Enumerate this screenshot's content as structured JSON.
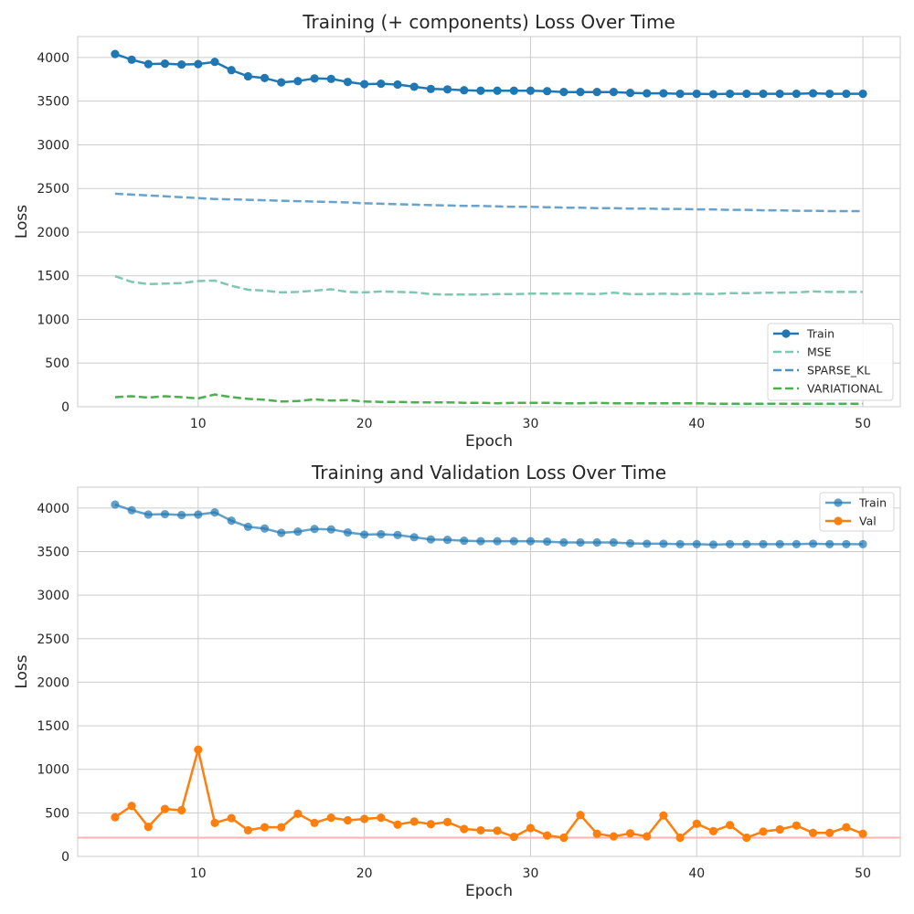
{
  "chart_data": [
    {
      "type": "line",
      "title": "Training (+ components) Loss Over Time",
      "xlabel": "Epoch",
      "ylabel": "Loss",
      "xlim": [
        2.75,
        52.25
      ],
      "ylim": [
        0,
        4240
      ],
      "xticks": [
        10,
        20,
        30,
        40,
        50
      ],
      "yticks": [
        0,
        500,
        1000,
        1500,
        2000,
        2500,
        3000,
        3500,
        4000
      ],
      "grid": true,
      "legend_position": "lower-right",
      "x": [
        5,
        6,
        7,
        8,
        9,
        10,
        11,
        12,
        13,
        14,
        15,
        16,
        17,
        18,
        19,
        20,
        21,
        22,
        23,
        24,
        25,
        26,
        27,
        28,
        29,
        30,
        31,
        32,
        33,
        34,
        35,
        36,
        37,
        38,
        39,
        40,
        41,
        42,
        43,
        44,
        45,
        46,
        47,
        48,
        49,
        50
      ],
      "series": [
        {
          "name": "Train",
          "color": "#1f77b4",
          "style": "solid-markers",
          "values": [
            4040,
            3975,
            3925,
            3930,
            3920,
            3925,
            3950,
            3855,
            3785,
            3765,
            3715,
            3730,
            3760,
            3755,
            3720,
            3695,
            3700,
            3690,
            3665,
            3640,
            3635,
            3625,
            3620,
            3620,
            3620,
            3620,
            3615,
            3605,
            3605,
            3605,
            3605,
            3595,
            3590,
            3590,
            3585,
            3585,
            3580,
            3585,
            3585,
            3585,
            3585,
            3585,
            3590,
            3585,
            3585,
            3585
          ]
        },
        {
          "name": "MSE",
          "color": "#7fc8ad",
          "style": "dashed",
          "values": [
            1495,
            1430,
            1405,
            1410,
            1415,
            1440,
            1445,
            1385,
            1340,
            1330,
            1310,
            1315,
            1330,
            1345,
            1315,
            1310,
            1320,
            1315,
            1310,
            1290,
            1285,
            1285,
            1285,
            1290,
            1290,
            1295,
            1295,
            1295,
            1295,
            1290,
            1305,
            1290,
            1290,
            1295,
            1290,
            1295,
            1290,
            1300,
            1300,
            1305,
            1305,
            1310,
            1320,
            1315,
            1315,
            1315
          ]
        },
        {
          "name": "SPARSE_KL",
          "color": "#4c93c3",
          "style": "dashed",
          "values": [
            2440,
            2430,
            2420,
            2410,
            2400,
            2390,
            2380,
            2375,
            2370,
            2365,
            2360,
            2355,
            2350,
            2345,
            2340,
            2330,
            2325,
            2320,
            2315,
            2310,
            2305,
            2300,
            2300,
            2295,
            2290,
            2290,
            2285,
            2280,
            2280,
            2275,
            2275,
            2270,
            2270,
            2265,
            2265,
            2260,
            2260,
            2255,
            2255,
            2250,
            2250,
            2245,
            2245,
            2240,
            2240,
            2240
          ]
        },
        {
          "name": "VARIATIONAL",
          "color": "#4caf50",
          "style": "dashed",
          "values": [
            110,
            120,
            105,
            120,
            110,
            95,
            140,
            110,
            90,
            80,
            60,
            65,
            85,
            70,
            75,
            60,
            55,
            55,
            50,
            50,
            50,
            45,
            45,
            40,
            45,
            45,
            45,
            40,
            40,
            45,
            40,
            40,
            40,
            40,
            40,
            40,
            35,
            35,
            35,
            35,
            35,
            35,
            35,
            35,
            35,
            35
          ]
        }
      ]
    },
    {
      "type": "line",
      "title": "Training and Validation Loss Over Time",
      "xlabel": "Epoch",
      "ylabel": "Loss",
      "xlim": [
        2.75,
        52.25
      ],
      "ylim": [
        0,
        4240
      ],
      "xticks": [
        10,
        20,
        30,
        40,
        50
      ],
      "yticks": [
        0,
        500,
        1000,
        1500,
        2000,
        2500,
        3000,
        3500,
        4000
      ],
      "grid": true,
      "legend_position": "top-right",
      "hline": {
        "y": 215,
        "color": "#ffb3b3"
      },
      "x": [
        5,
        6,
        7,
        8,
        9,
        10,
        11,
        12,
        13,
        14,
        15,
        16,
        17,
        18,
        19,
        20,
        21,
        22,
        23,
        24,
        25,
        26,
        27,
        28,
        29,
        30,
        31,
        32,
        33,
        34,
        35,
        36,
        37,
        38,
        39,
        40,
        41,
        42,
        43,
        44,
        45,
        46,
        47,
        48,
        49,
        50
      ],
      "series": [
        {
          "name": "Train",
          "color": "#1f77b4",
          "style": "solid-markers-faded",
          "values": [
            4040,
            3975,
            3925,
            3930,
            3920,
            3925,
            3950,
            3855,
            3785,
            3765,
            3715,
            3730,
            3760,
            3755,
            3720,
            3695,
            3700,
            3690,
            3665,
            3640,
            3635,
            3625,
            3620,
            3620,
            3620,
            3620,
            3615,
            3605,
            3605,
            3605,
            3605,
            3595,
            3590,
            3590,
            3585,
            3585,
            3580,
            3585,
            3585,
            3585,
            3585,
            3585,
            3590,
            3585,
            3585,
            3585
          ]
        },
        {
          "name": "Val",
          "color": "#ff7f0e",
          "style": "solid-markers",
          "values": [
            450,
            580,
            340,
            545,
            530,
            1225,
            385,
            440,
            300,
            335,
            335,
            490,
            385,
            445,
            415,
            430,
            445,
            365,
            400,
            370,
            395,
            315,
            300,
            295,
            225,
            325,
            240,
            215,
            475,
            260,
            230,
            265,
            230,
            470,
            215,
            375,
            290,
            360,
            215,
            285,
            310,
            355,
            270,
            270,
            335,
            260
          ]
        }
      ]
    }
  ]
}
